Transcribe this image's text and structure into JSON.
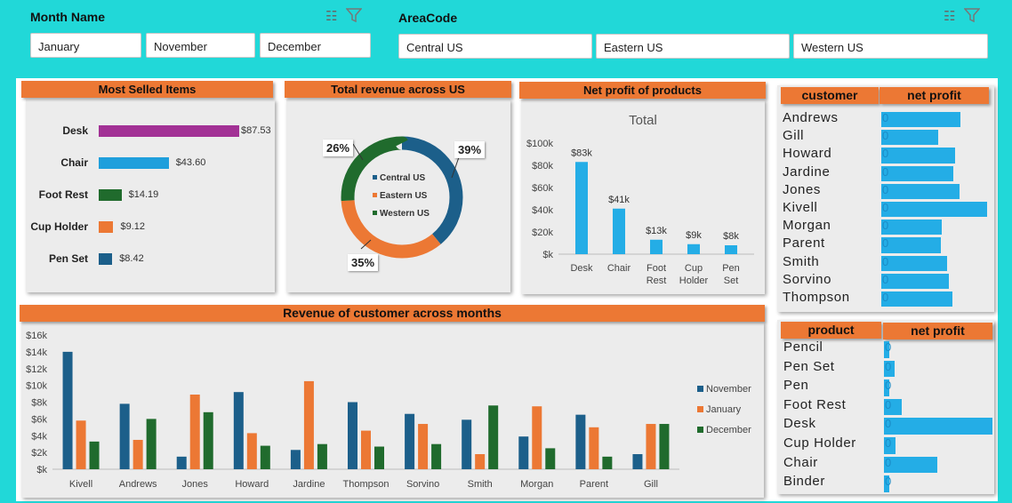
{
  "slicers": {
    "month": {
      "title": "Month Name",
      "items": [
        "January",
        "November",
        "December"
      ]
    },
    "area": {
      "title": "AreaCode",
      "items": [
        "Central US",
        "Eastern US",
        "Western US"
      ]
    }
  },
  "most_selled": {
    "title": "Most Selled Items",
    "items": [
      {
        "label": "Desk",
        "value": 87.53,
        "text": "$87.53",
        "color": "#a23195"
      },
      {
        "label": "Chair",
        "value": 43.6,
        "text": "$43.60",
        "color": "#1f9fdc"
      },
      {
        "label": "Foot Rest",
        "value": 14.19,
        "text": "$14.19",
        "color": "#206b2d"
      },
      {
        "label": "Cup Holder",
        "value": 9.12,
        "text": "$9.12",
        "color": "#ec7834"
      },
      {
        "label": "Pen Set",
        "value": 8.42,
        "text": "$8.42",
        "color": "#1c5f8a"
      }
    ]
  },
  "revenue_us": {
    "title": "Total revenue across US",
    "slices": [
      {
        "name": "Central US",
        "pct": 39,
        "label": "39%",
        "color": "#1c5f8a"
      },
      {
        "name": "Eastern US",
        "pct": 35,
        "label": "35%",
        "color": "#ec7834"
      },
      {
        "name": "Western US",
        "pct": 26,
        "label": "26%",
        "color": "#206b2d"
      }
    ]
  },
  "net_profit_products": {
    "title": "Net profit of products",
    "chart_title": "Total",
    "y_ticks": [
      "$100k",
      "$80k",
      "$60k",
      "$40k",
      "$20k",
      "$k"
    ],
    "bars": [
      {
        "cat": "Desk",
        "value": 83,
        "label": "$83k"
      },
      {
        "cat": "Chair",
        "value": 41,
        "label": "$41k"
      },
      {
        "cat": "Foot Rest",
        "value": 13,
        "label": "$13k"
      },
      {
        "cat": "Cup Holder",
        "value": 9,
        "label": "$9k"
      },
      {
        "cat": "Pen Set",
        "value": 8,
        "label": "$8k"
      }
    ]
  },
  "customer_table": {
    "col1": "customer",
    "col2": "net profit",
    "rows": [
      {
        "name": "Andrews",
        "value": 0,
        "fill": 0.75
      },
      {
        "name": "Gill",
        "value": 0,
        "fill": 0.54
      },
      {
        "name": "Howard",
        "value": 0,
        "fill": 0.7
      },
      {
        "name": "Jardine",
        "value": 0,
        "fill": 0.68
      },
      {
        "name": "Jones",
        "value": 0,
        "fill": 0.74
      },
      {
        "name": "Kivell",
        "value": 0,
        "fill": 1.0
      },
      {
        "name": "Morgan",
        "value": 0,
        "fill": 0.57
      },
      {
        "name": "Parent",
        "value": 0,
        "fill": 0.56
      },
      {
        "name": "Smith",
        "value": 0,
        "fill": 0.62
      },
      {
        "name": "Sorvino",
        "value": 0,
        "fill": 0.64
      },
      {
        "name": "Thompson",
        "value": 0,
        "fill": 0.67
      }
    ]
  },
  "product_table": {
    "col1": "product",
    "col2": "net profit",
    "rows": [
      {
        "name": "Pencil",
        "value": 0,
        "fill": 0.05
      },
      {
        "name": "Pen Set",
        "value": 0,
        "fill": 0.1
      },
      {
        "name": "Pen",
        "value": 0,
        "fill": 0.05
      },
      {
        "name": "Foot Rest",
        "value": 0,
        "fill": 0.16
      },
      {
        "name": "Desk",
        "value": 0,
        "fill": 1.0
      },
      {
        "name": "Cup Holder",
        "value": 0,
        "fill": 0.11
      },
      {
        "name": "Chair",
        "value": 0,
        "fill": 0.49
      },
      {
        "name": "Binder",
        "value": 0,
        "fill": 0.05
      }
    ]
  },
  "chart_data": {
    "type": "bar",
    "title": "Revenue of customer across months",
    "categories": [
      "Kivell",
      "Andrews",
      "Jones",
      "Howard",
      "Jardine",
      "Thompson",
      "Sorvino",
      "Smith",
      "Morgan",
      "Parent",
      "Gill"
    ],
    "y_ticks": [
      "$16k",
      "$14k",
      "$12k",
      "$10k",
      "$8k",
      "$6k",
      "$4k",
      "$2k",
      "$k"
    ],
    "ylim": [
      0,
      16
    ],
    "series": [
      {
        "name": "November",
        "color": "#1c5f8a",
        "values": [
          14,
          7.8,
          1.5,
          9.2,
          2.3,
          8,
          6.6,
          5.9,
          3.9,
          6.5,
          1.8
        ]
      },
      {
        "name": "January",
        "color": "#ec7834",
        "values": [
          5.8,
          3.5,
          8.9,
          4.3,
          10.5,
          4.6,
          5.4,
          1.8,
          7.5,
          5.0,
          5.4
        ]
      },
      {
        "name": "December",
        "color": "#206b2d",
        "values": [
          3.3,
          6.0,
          6.8,
          2.8,
          3.0,
          2.7,
          3.0,
          7.6,
          2.5,
          1.5,
          5.4
        ]
      }
    ],
    "legend": "right"
  }
}
